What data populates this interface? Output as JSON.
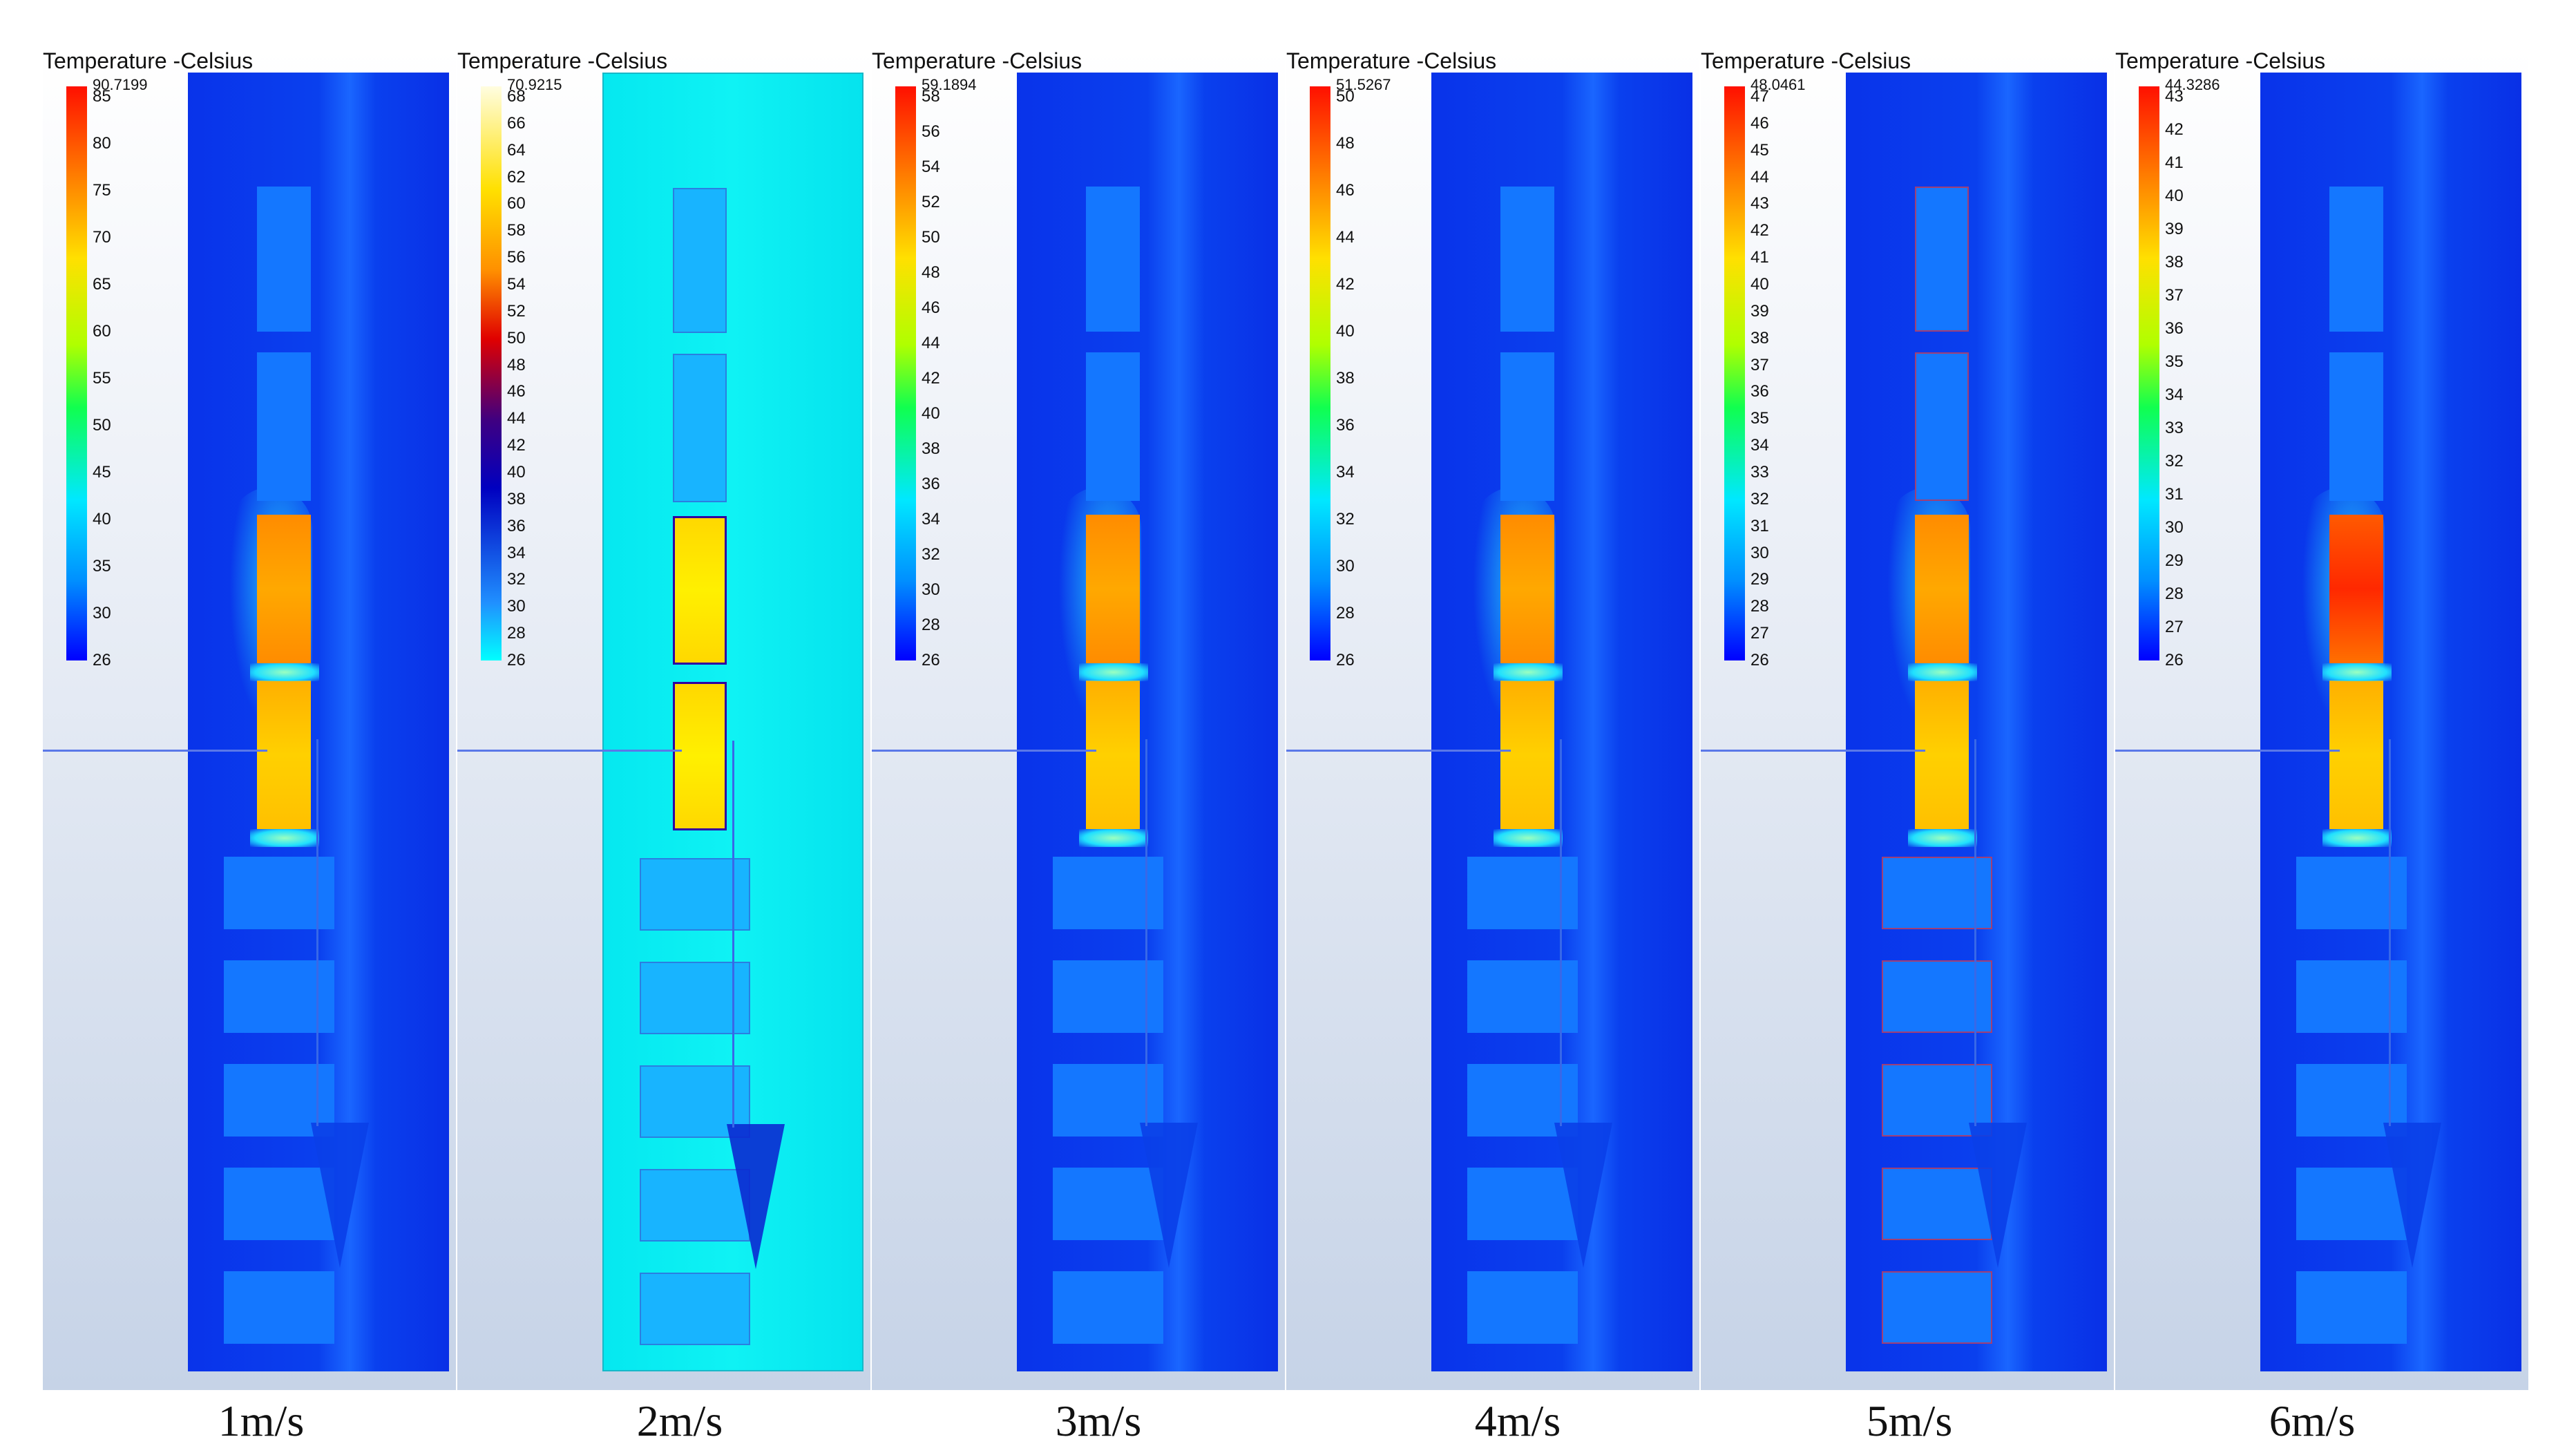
{
  "panels": [
    {
      "title": "Temperature -Celsius",
      "legend_max": "90.7199",
      "ticks": [
        "85",
        "80",
        "75",
        "70",
        "65",
        "60",
        "55",
        "50",
        "45",
        "40",
        "35",
        "30",
        "26"
      ],
      "caption": "1m/s",
      "colormap": "rainbow"
    },
    {
      "title": "Temperature -Celsius",
      "legend_max": "70.9215",
      "ticks": [
        "68",
        "66",
        "64",
        "62",
        "60",
        "58",
        "56",
        "54",
        "52",
        "50",
        "48",
        "46",
        "44",
        "42",
        "40",
        "38",
        "36",
        "34",
        "32",
        "30",
        "28",
        "26"
      ],
      "caption": "2m/s",
      "colormap": "cool-hot"
    },
    {
      "title": "Temperature -Celsius",
      "legend_max": "59.1894",
      "ticks": [
        "58",
        "56",
        "54",
        "52",
        "50",
        "48",
        "46",
        "44",
        "42",
        "40",
        "38",
        "36",
        "34",
        "32",
        "30",
        "28",
        "26"
      ],
      "caption": "3m/s",
      "colormap": "rainbow"
    },
    {
      "title": "Temperature -Celsius",
      "legend_max": "51.5267",
      "ticks": [
        "50",
        "48",
        "46",
        "44",
        "42",
        "40",
        "38",
        "36",
        "34",
        "32",
        "30",
        "28",
        "26"
      ],
      "caption": "4m/s",
      "colormap": "rainbow"
    },
    {
      "title": "Temperature -Celsius",
      "legend_max": "48.0461",
      "ticks": [
        "47",
        "46",
        "45",
        "44",
        "43",
        "42",
        "41",
        "40",
        "39",
        "38",
        "37",
        "36",
        "35",
        "34",
        "33",
        "32",
        "31",
        "30",
        "29",
        "28",
        "27",
        "26"
      ],
      "caption": "5m/s",
      "colormap": "rainbow"
    },
    {
      "title": "Temperature -Celsius",
      "legend_max": "44.3286",
      "ticks": [
        "43",
        "42",
        "41",
        "40",
        "39",
        "38",
        "37",
        "36",
        "35",
        "34",
        "33",
        "32",
        "31",
        "30",
        "29",
        "28",
        "27",
        "26"
      ],
      "caption": "6m/s",
      "colormap": "rainbow"
    }
  ]
}
